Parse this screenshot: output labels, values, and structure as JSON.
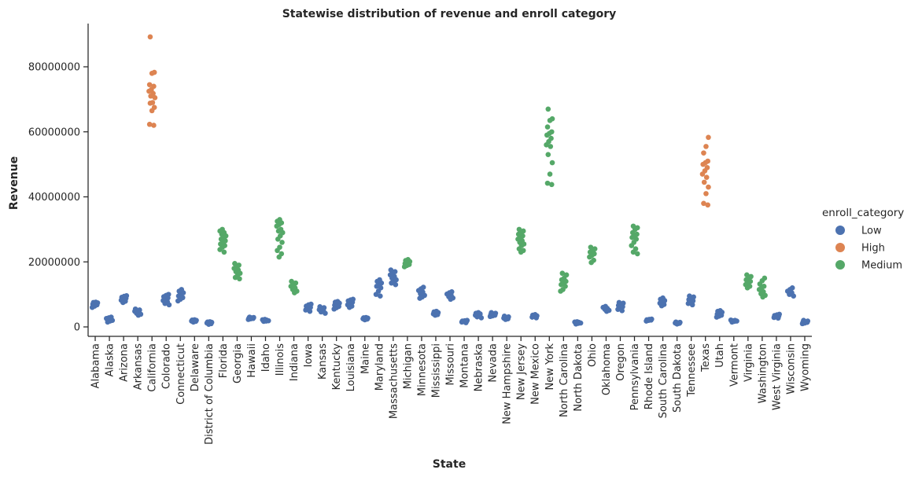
{
  "chart_data": {
    "type": "scatter",
    "subtype": "categorical strip plot",
    "title": "Statewise distribution of revenue and enroll category",
    "xlabel": "State",
    "ylabel": "Revenue",
    "ylim": [
      -3000000,
      94000000
    ],
    "y_ticks": [
      0,
      20000000,
      40000000,
      60000000,
      80000000
    ],
    "grid": false,
    "legend_position": "right",
    "legend_title": "enroll_category",
    "categories_hue": [
      {
        "name": "Low",
        "color": "#4c72b0"
      },
      {
        "name": "High",
        "color": "#dd8452"
      },
      {
        "name": "Medium",
        "color": "#55a868"
      }
    ],
    "states": [
      {
        "name": "Alabama",
        "hue": "Low",
        "values": [
          6000000,
          6400000,
          6800000,
          7000000,
          7200000,
          7400000,
          7500000,
          7600000
        ]
      },
      {
        "name": "Alaska",
        "hue": "Low",
        "values": [
          1500000,
          1800000,
          2000000,
          2200000,
          2400000,
          2600000,
          2800000,
          3000000
        ]
      },
      {
        "name": "Arizona",
        "hue": "Low",
        "values": [
          7500000,
          7900000,
          8200000,
          8500000,
          8800000,
          9100000,
          9400000,
          9600000
        ]
      },
      {
        "name": "Arkansas",
        "hue": "Low",
        "values": [
          3600000,
          3900000,
          4200000,
          4500000,
          4800000,
          5000000,
          5200000,
          5500000
        ]
      },
      {
        "name": "California",
        "hue": "High",
        "values": [
          62000000,
          62300000,
          66500000,
          67500000,
          68800000,
          69000000,
          70500000,
          71000000,
          71800000,
          72500000,
          73000000,
          74000000,
          74500000,
          78000000,
          78300000,
          89200000
        ]
      },
      {
        "name": "Colorado",
        "hue": "Low",
        "values": [
          6800000,
          7200000,
          7700000,
          8100000,
          8500000,
          8900000,
          9300000,
          9700000,
          10000000
        ]
      },
      {
        "name": "Connecticut",
        "hue": "Low",
        "values": [
          8000000,
          8500000,
          9000000,
          9500000,
          10000000,
          10500000,
          11000000,
          11500000
        ]
      },
      {
        "name": "Delaware",
        "hue": "Low",
        "values": [
          1500000,
          1700000,
          1800000,
          1900000,
          2000000,
          2100000,
          2200000
        ]
      },
      {
        "name": "District of Columbia",
        "hue": "Low",
        "values": [
          800000,
          1000000,
          1200000,
          1300000,
          1400000,
          1500000,
          1600000
        ]
      },
      {
        "name": "Florida",
        "hue": "Medium",
        "values": [
          23000000,
          23800000,
          24500000,
          25000000,
          25500000,
          26000000,
          26500000,
          27000000,
          27500000,
          28000000,
          28500000,
          29000000,
          29500000,
          30000000
        ]
      },
      {
        "name": "Georgia",
        "hue": "Medium",
        "values": [
          14800000,
          15200000,
          16000000,
          16500000,
          17000000,
          17500000,
          18000000,
          18500000,
          19000000,
          19500000
        ]
      },
      {
        "name": "Hawaii",
        "hue": "Low",
        "values": [
          2300000,
          2500000,
          2600000,
          2700000,
          2800000,
          2900000,
          3000000
        ]
      },
      {
        "name": "Idaho",
        "hue": "Low",
        "values": [
          1700000,
          1800000,
          1900000,
          2000000,
          2100000,
          2200000,
          2300000
        ]
      },
      {
        "name": "Illinois",
        "hue": "Medium",
        "values": [
          21500000,
          22500000,
          23500000,
          24500000,
          26000000,
          27000000,
          28000000,
          29000000,
          29500000,
          30000000,
          31000000,
          31500000,
          32000000,
          32500000,
          33000000
        ]
      },
      {
        "name": "Indiana",
        "hue": "Medium",
        "values": [
          10500000,
          11000000,
          11500000,
          12000000,
          12500000,
          13000000,
          13500000,
          14000000
        ]
      },
      {
        "name": "Iowa",
        "hue": "Low",
        "values": [
          4800000,
          5200000,
          5600000,
          6000000,
          6400000,
          6800000,
          7000000
        ]
      },
      {
        "name": "Kansas",
        "hue": "Low",
        "values": [
          4200000,
          4600000,
          5000000,
          5300000,
          5600000,
          5900000,
          6200000
        ]
      },
      {
        "name": "Kentucky",
        "hue": "Low",
        "values": [
          5500000,
          5900000,
          6300000,
          6700000,
          7000000,
          7300000,
          7600000,
          7800000
        ]
      },
      {
        "name": "Louisiana",
        "hue": "Low",
        "values": [
          6000000,
          6400000,
          6800000,
          7200000,
          7600000,
          8000000,
          8300000,
          8500000
        ]
      },
      {
        "name": "Maine",
        "hue": "Low",
        "values": [
          2200000,
          2400000,
          2500000,
          2600000,
          2700000,
          2800000,
          2900000
        ]
      },
      {
        "name": "Maryland",
        "hue": "Low",
        "values": [
          9500000,
          10000000,
          11000000,
          12000000,
          12500000,
          13000000,
          13500000,
          14000000,
          14500000
        ]
      },
      {
        "name": "Massachusetts",
        "hue": "Low",
        "values": [
          13000000,
          13500000,
          14000000,
          14500000,
          15000000,
          15500000,
          16000000,
          16500000,
          17000000,
          17500000
        ]
      },
      {
        "name": "Michigan",
        "hue": "Medium",
        "values": [
          18500000,
          18900000,
          19200000,
          19500000,
          19800000,
          20100000,
          20400000,
          20700000
        ]
      },
      {
        "name": "Minnesota",
        "hue": "Low",
        "values": [
          8800000,
          9200000,
          9700000,
          10200000,
          10700000,
          11200000,
          11700000,
          12200000
        ]
      },
      {
        "name": "Mississippi",
        "hue": "Low",
        "values": [
          3600000,
          3800000,
          4000000,
          4200000,
          4400000,
          4600000,
          4800000
        ]
      },
      {
        "name": "Missouri",
        "hue": "Low",
        "values": [
          8500000,
          8900000,
          9300000,
          9700000,
          10100000,
          10500000,
          10800000
        ]
      },
      {
        "name": "Montana",
        "hue": "Low",
        "values": [
          1300000,
          1500000,
          1600000,
          1700000,
          1800000,
          1900000,
          2000000
        ]
      },
      {
        "name": "Nebraska",
        "hue": "Low",
        "values": [
          2800000,
          3100000,
          3400000,
          3600000,
          3800000,
          4000000,
          4200000,
          4400000
        ]
      },
      {
        "name": "Nevada",
        "hue": "Low",
        "values": [
          3200000,
          3400000,
          3600000,
          3800000,
          4000000,
          4200000,
          4400000
        ]
      },
      {
        "name": "New Hampshire",
        "hue": "Low",
        "values": [
          2300000,
          2500000,
          2700000,
          2900000,
          3100000,
          3300000
        ]
      },
      {
        "name": "New Jersey",
        "hue": "Medium",
        "values": [
          23000000,
          23500000,
          24000000,
          25000000,
          25500000,
          26000000,
          26500000,
          27000000,
          27500000,
          28000000,
          28500000,
          29000000,
          29500000,
          30000000
        ]
      },
      {
        "name": "New Mexico",
        "hue": "Low",
        "values": [
          2800000,
          3000000,
          3200000,
          3400000,
          3600000,
          3800000
        ]
      },
      {
        "name": "New York",
        "hue": "Medium",
        "values": [
          43800000,
          44200000,
          47000000,
          50500000,
          53000000,
          55500000,
          56000000,
          57000000,
          58000000,
          59000000,
          59500000,
          60000000,
          61500000,
          63500000,
          64000000,
          67000000
        ]
      },
      {
        "name": "North Carolina",
        "hue": "Medium",
        "values": [
          11000000,
          11500000,
          12500000,
          13000000,
          13500000,
          14000000,
          14500000,
          15000000,
          16000000,
          16500000
        ]
      },
      {
        "name": "North Dakota",
        "hue": "Low",
        "values": [
          900000,
          1100000,
          1200000,
          1300000,
          1400000,
          1500000,
          1600000
        ]
      },
      {
        "name": "Ohio",
        "hue": "Medium",
        "values": [
          19800000,
          20500000,
          21500000,
          22000000,
          22500000,
          23000000,
          23500000,
          24000000,
          24500000
        ]
      },
      {
        "name": "Oklahoma",
        "hue": "Low",
        "values": [
          4800000,
          5100000,
          5400000,
          5700000,
          6000000,
          6300000
        ]
      },
      {
        "name": "Oregon",
        "hue": "Low",
        "values": [
          5000000,
          5400000,
          5800000,
          6200000,
          6600000,
          7000000,
          7300000,
          7500000
        ]
      },
      {
        "name": "Pennsylvania",
        "hue": "Medium",
        "values": [
          22500000,
          23000000,
          24000000,
          25000000,
          26000000,
          27000000,
          27500000,
          28000000,
          28500000,
          29000000,
          30000000,
          30500000,
          31000000
        ]
      },
      {
        "name": "Rhode Island",
        "hue": "Low",
        "values": [
          1800000,
          2000000,
          2100000,
          2200000,
          2300000,
          2400000
        ]
      },
      {
        "name": "South Carolina",
        "hue": "Low",
        "values": [
          6500000,
          6900000,
          7300000,
          7700000,
          8100000,
          8500000,
          8900000
        ]
      },
      {
        "name": "South Dakota",
        "hue": "Low",
        "values": [
          900000,
          1100000,
          1200000,
          1300000,
          1400000,
          1500000
        ]
      },
      {
        "name": "Tennessee",
        "hue": "Low",
        "values": [
          6800000,
          7200000,
          7600000,
          8000000,
          8400000,
          8800000,
          9200000,
          9500000
        ]
      },
      {
        "name": "Texas",
        "hue": "High",
        "values": [
          37500000,
          38000000,
          41000000,
          43000000,
          44500000,
          46000000,
          47000000,
          48000000,
          49000000,
          50000000,
          50500000,
          51000000,
          53500000,
          55500000,
          58300000
        ]
      },
      {
        "name": "Utah",
        "hue": "Low",
        "values": [
          3000000,
          3300000,
          3600000,
          3900000,
          4200000,
          4500000,
          4800000,
          5000000
        ]
      },
      {
        "name": "Vermont",
        "hue": "Low",
        "values": [
          1500000,
          1700000,
          1800000,
          1900000,
          2000000,
          2100000
        ]
      },
      {
        "name": "Virginia",
        "hue": "Medium",
        "values": [
          12000000,
          12500000,
          13000000,
          13500000,
          14000000,
          14500000,
          15000000,
          15500000,
          16000000
        ]
      },
      {
        "name": "Washington",
        "hue": "Medium",
        "values": [
          9200000,
          9700000,
          10200000,
          10800000,
          11500000,
          12000000,
          12500000,
          13200000,
          14200000,
          15000000
        ]
      },
      {
        "name": "West Virginia",
        "hue": "Low",
        "values": [
          2700000,
          2900000,
          3100000,
          3300000,
          3500000,
          3700000,
          3900000
        ]
      },
      {
        "name": "Wisconsin",
        "hue": "Low",
        "values": [
          9500000,
          10000000,
          10500000,
          11000000,
          11500000,
          12000000
        ]
      },
      {
        "name": "Wyoming",
        "hue": "Low",
        "values": [
          1000000,
          1200000,
          1400000,
          1500000,
          1600000,
          1800000,
          2000000
        ]
      }
    ]
  }
}
